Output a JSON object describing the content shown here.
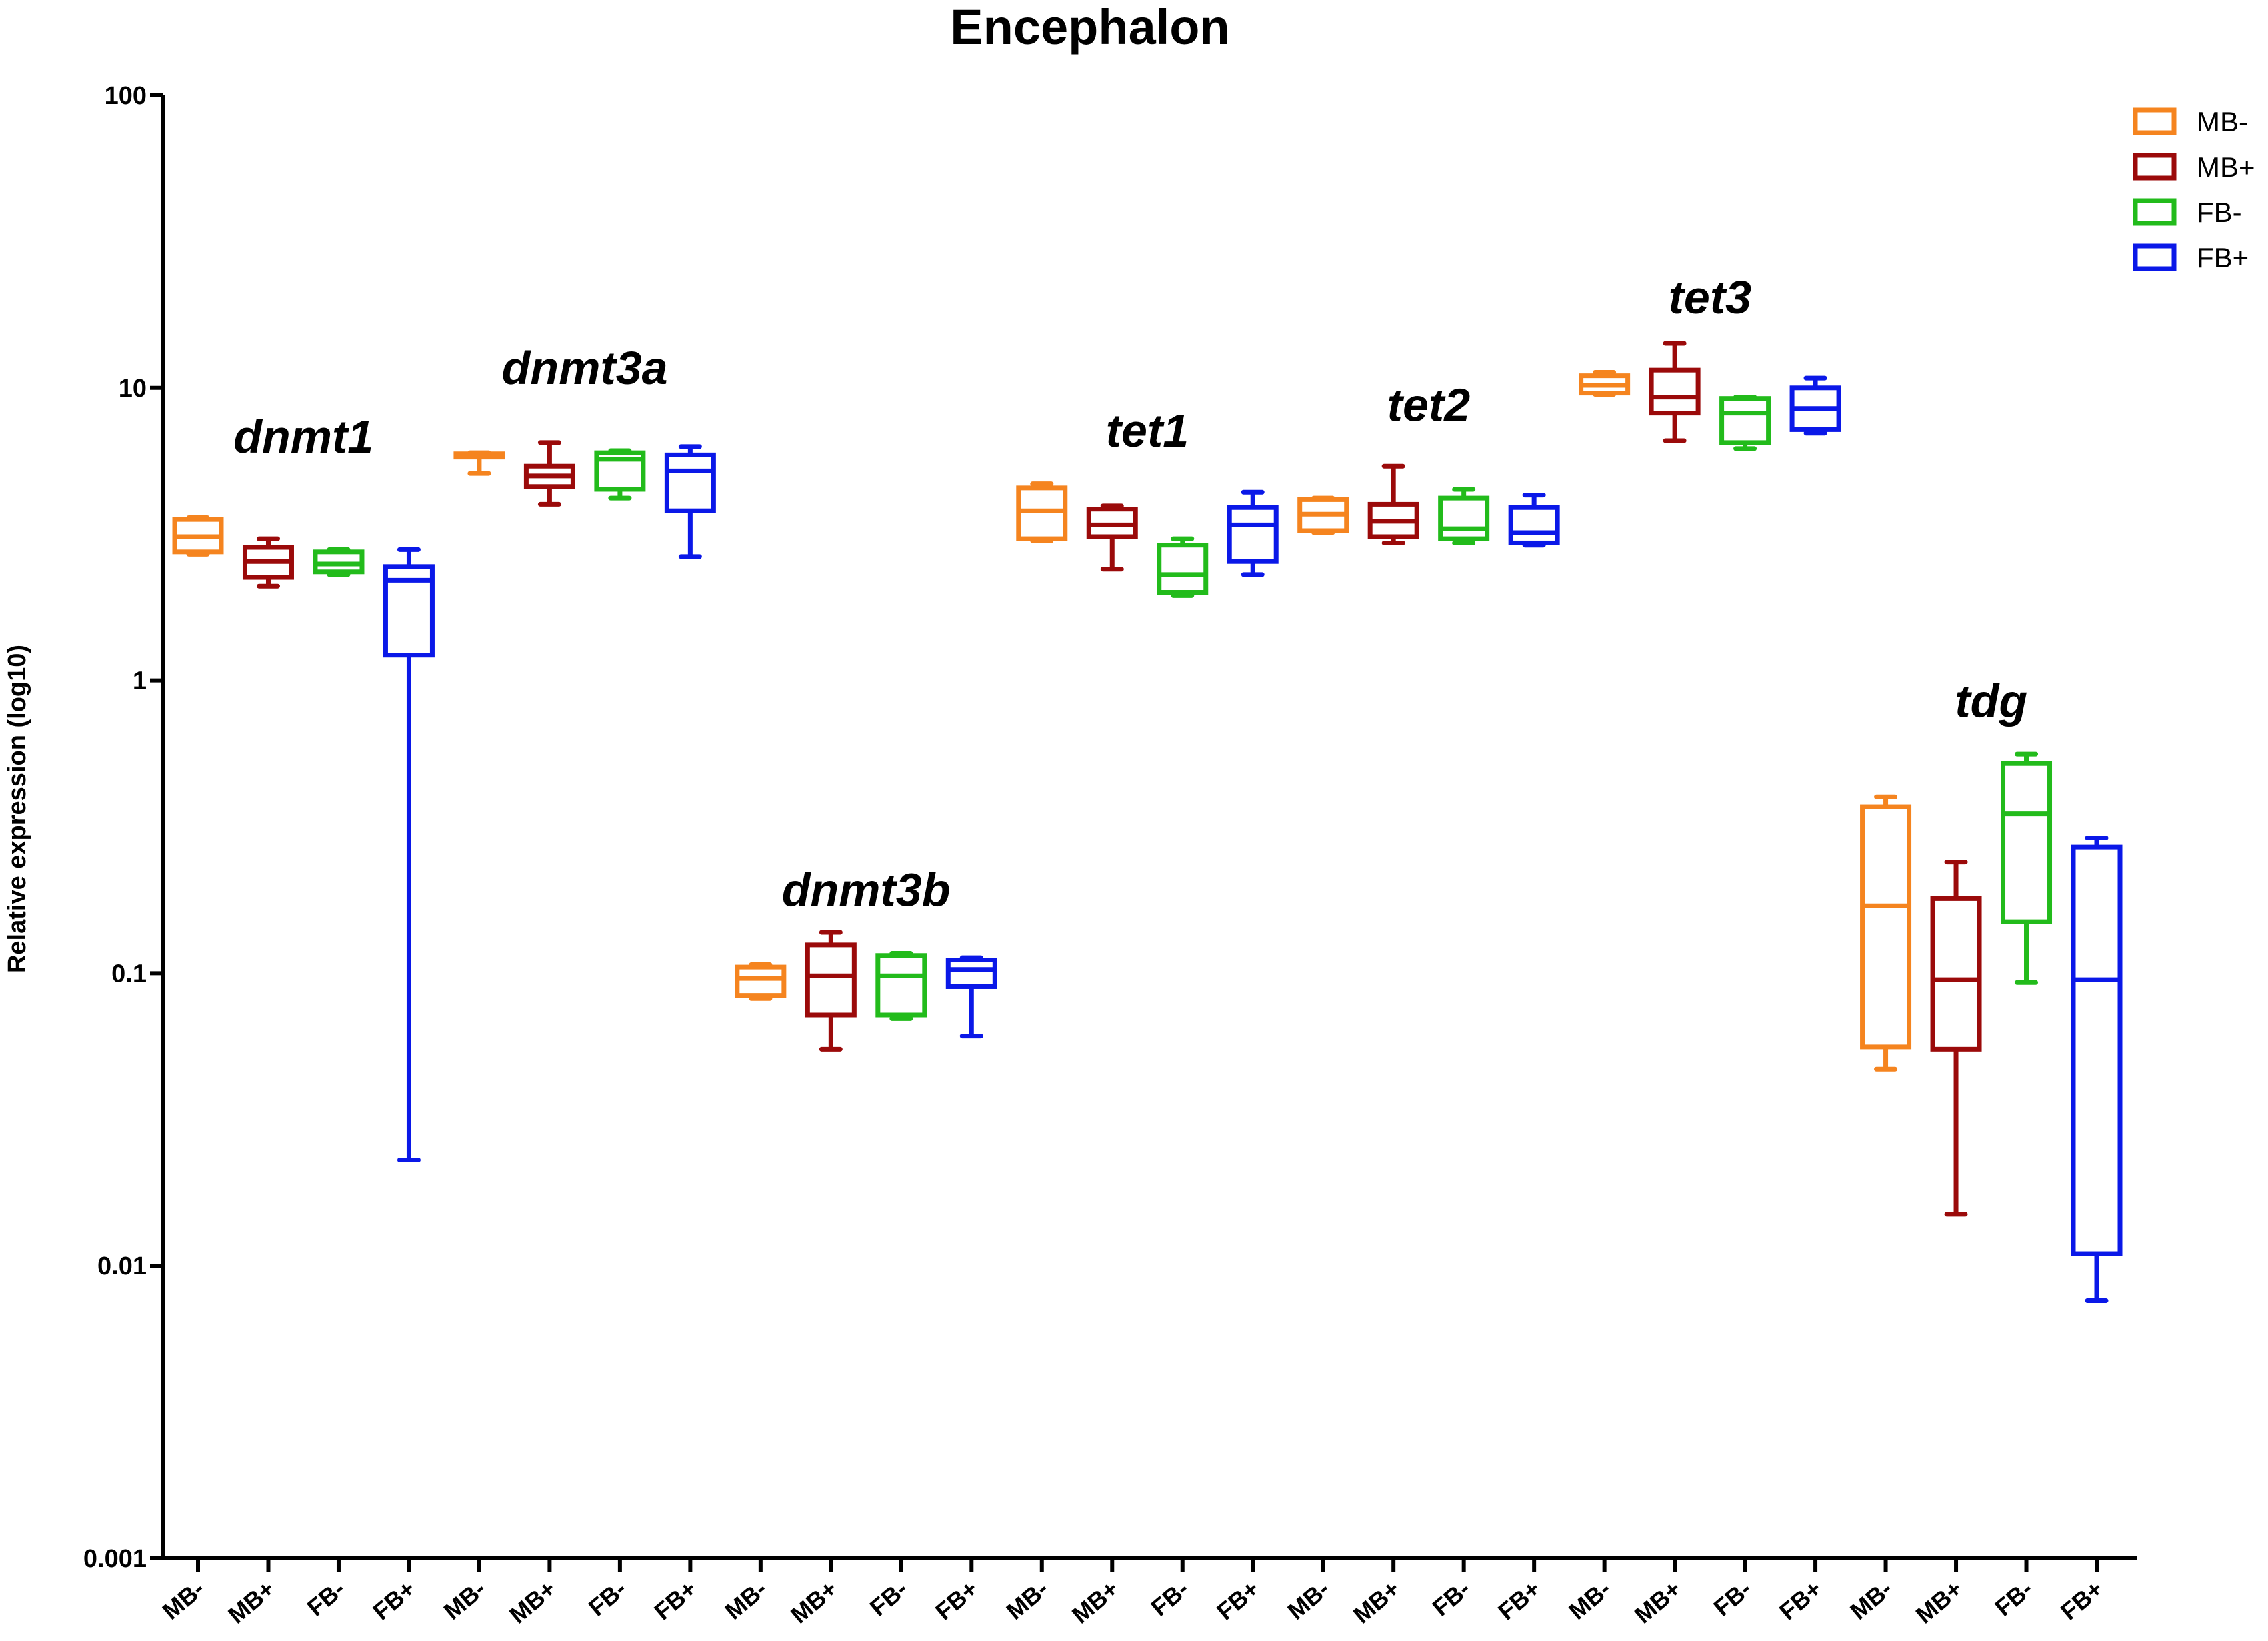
{
  "chart_data": {
    "type": "boxplot",
    "title": "Encephalon",
    "ylabel": "Relative expression (log10)",
    "xlabel": "",
    "yscale": "log10",
    "ylim": [
      0.001,
      100
    ],
    "yticks": [
      0.001,
      0.01,
      0.1,
      1,
      10,
      100
    ],
    "ytick_labels": [
      "0.001",
      "0.01",
      "0.1",
      "1",
      "10",
      "100"
    ],
    "legend": {
      "position": "top-right",
      "entries": [
        {
          "name": "MB-",
          "color": "#F5841F"
        },
        {
          "name": "MB+",
          "color": "#9B0A0A"
        },
        {
          "name": "FB-",
          "color": "#22BB1B"
        },
        {
          "name": "FB+",
          "color": "#0A18E8"
        }
      ]
    },
    "groups": [
      {
        "gene": "dnmt1",
        "label_y": 6.0,
        "boxes": [
          {
            "series": "MB-",
            "min": 2.7,
            "q1": 2.75,
            "median": 3.1,
            "q3": 3.55,
            "max": 3.6
          },
          {
            "series": "MB+",
            "min": 2.1,
            "q1": 2.25,
            "median": 2.55,
            "q3": 2.85,
            "max": 3.05
          },
          {
            "series": "FB-",
            "min": 2.3,
            "q1": 2.35,
            "median": 2.5,
            "q3": 2.75,
            "max": 2.8
          },
          {
            "series": "FB+",
            "min": 0.023,
            "q1": 1.22,
            "median": 2.2,
            "q3": 2.45,
            "max": 2.8
          }
        ]
      },
      {
        "gene": "dnmt3a",
        "label_y": 10.3,
        "boxes": [
          {
            "series": "MB-",
            "min": 5.1,
            "q1": 5.8,
            "median": 5.9,
            "q3": 5.95,
            "max": 6.0
          },
          {
            "series": "MB+",
            "min": 4.0,
            "q1": 4.6,
            "median": 5.0,
            "q3": 5.4,
            "max": 6.5
          },
          {
            "series": "FB-",
            "min": 4.2,
            "q1": 4.5,
            "median": 5.7,
            "q3": 6.0,
            "max": 6.1
          },
          {
            "series": "FB+",
            "min": 2.65,
            "q1": 3.8,
            "median": 5.2,
            "q3": 5.9,
            "max": 6.3
          }
        ]
      },
      {
        "gene": "dnmt3b",
        "label_y": 0.17,
        "boxes": [
          {
            "series": "MB-",
            "min": 0.082,
            "q1": 0.084,
            "median": 0.096,
            "q3": 0.105,
            "max": 0.107
          },
          {
            "series": "MB+",
            "min": 0.055,
            "q1": 0.072,
            "median": 0.098,
            "q3": 0.125,
            "max": 0.138
          },
          {
            "series": "FB-",
            "min": 0.07,
            "q1": 0.072,
            "median": 0.098,
            "q3": 0.115,
            "max": 0.117
          },
          {
            "series": "FB+",
            "min": 0.061,
            "q1": 0.09,
            "median": 0.103,
            "q3": 0.111,
            "max": 0.113
          }
        ]
      },
      {
        "gene": "tet1",
        "label_y": 6.3,
        "boxes": [
          {
            "series": "MB-",
            "min": 3.0,
            "q1": 3.05,
            "median": 3.8,
            "q3": 4.55,
            "max": 4.7
          },
          {
            "series": "MB+",
            "min": 2.4,
            "q1": 3.1,
            "median": 3.4,
            "q3": 3.85,
            "max": 3.95
          },
          {
            "series": "FB-",
            "min": 1.95,
            "q1": 2.0,
            "median": 2.3,
            "q3": 2.9,
            "max": 3.05
          },
          {
            "series": "FB+",
            "min": 2.3,
            "q1": 2.55,
            "median": 3.4,
            "q3": 3.9,
            "max": 4.4
          }
        ]
      },
      {
        "gene": "tet2",
        "label_y": 7.7,
        "boxes": [
          {
            "series": "MB-",
            "min": 3.2,
            "q1": 3.25,
            "median": 3.7,
            "q3": 4.15,
            "max": 4.2
          },
          {
            "series": "MB+",
            "min": 2.95,
            "q1": 3.1,
            "median": 3.5,
            "q3": 4.0,
            "max": 5.4
          },
          {
            "series": "FB-",
            "min": 2.95,
            "q1": 3.05,
            "median": 3.3,
            "q3": 4.2,
            "max": 4.5
          },
          {
            "series": "FB+",
            "min": 2.9,
            "q1": 2.95,
            "median": 3.2,
            "q3": 3.9,
            "max": 4.3
          }
        ]
      },
      {
        "gene": "tet3",
        "label_y": 18.0,
        "boxes": [
          {
            "series": "MB-",
            "min": 9.5,
            "q1": 9.6,
            "median": 10.2,
            "q3": 11.0,
            "max": 11.3
          },
          {
            "series": "MB+",
            "min": 6.6,
            "q1": 8.2,
            "median": 9.3,
            "q3": 11.5,
            "max": 14.2
          },
          {
            "series": "FB-",
            "min": 6.2,
            "q1": 6.5,
            "median": 8.2,
            "q3": 9.2,
            "max": 9.3
          },
          {
            "series": "FB+",
            "min": 7.0,
            "q1": 7.2,
            "median": 8.5,
            "q3": 10.0,
            "max": 10.8
          }
        ]
      },
      {
        "gene": "tdg",
        "label_y": 0.75,
        "boxes": [
          {
            "series": "MB-",
            "min": 0.047,
            "q1": 0.056,
            "median": 0.17,
            "q3": 0.37,
            "max": 0.4
          },
          {
            "series": "MB+",
            "min": 0.015,
            "q1": 0.055,
            "median": 0.095,
            "q3": 0.18,
            "max": 0.24
          },
          {
            "series": "FB-",
            "min": 0.093,
            "q1": 0.15,
            "median": 0.35,
            "q3": 0.52,
            "max": 0.56
          },
          {
            "series": "FB+",
            "min": 0.0076,
            "q1": 0.011,
            "median": 0.095,
            "q3": 0.27,
            "max": 0.29
          }
        ]
      }
    ]
  }
}
